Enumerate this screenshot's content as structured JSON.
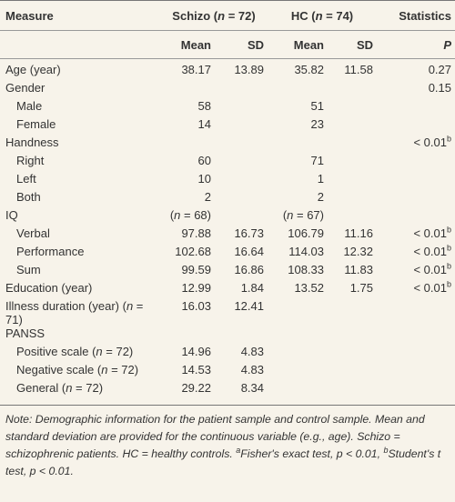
{
  "table": {
    "header": [
      [
        "Measure",
        [
          "Schizo (",
          {
            "italic": "n"
          },
          " = 72)"
        ],
        [
          "HC (",
          {
            "italic": "n"
          },
          " = 74)"
        ],
        "Statistics"
      ],
      [
        "Mean",
        "SD",
        "Mean",
        "SD",
        "P"
      ]
    ],
    "rows": [
      {
        "cells": [
          "Age (year)",
          38.17,
          13.89,
          35.82,
          11.58,
          0.27
        ]
      },
      {
        "cells": [
          "Gender",
          null,
          null,
          null,
          null,
          0.15
        ],
        "children": [
          {
            "cells": [
              "Male",
              58,
              null,
              51,
              null,
              null
            ]
          },
          {
            "cells": [
              "Female",
              14,
              null,
              23,
              null,
              null
            ]
          }
        ]
      },
      {
        "cells": [
          "Handness",
          null,
          null,
          null,
          null,
          [
            "< 0.01",
            {
              "sup": "b"
            }
          ]
        ],
        "children": [
          {
            "cells": [
              "Right",
              60,
              null,
              71,
              null,
              null
            ]
          },
          {
            "cells": [
              "Left",
              10,
              null,
              1,
              null,
              null
            ]
          },
          {
            "cells": [
              "Both",
              2,
              null,
              2,
              null,
              null
            ]
          }
        ]
      },
      {
        "cells": [
          "IQ",
          [
            "(",
            {
              "italic": "n"
            },
            " = 68)"
          ],
          null,
          [
            "(",
            {
              "italic": "n"
            },
            " = 67)"
          ],
          null,
          null
        ],
        "children": [
          {
            "cells": [
              "Verbal",
              97.88,
              16.73,
              106.79,
              11.16,
              [
                "< 0.01",
                {
                  "sup": "b"
                }
              ]
            ]
          },
          {
            "cells": [
              "Performance",
              102.68,
              16.64,
              114.03,
              12.32,
              [
                "< 0.01",
                {
                  "sup": "b"
                }
              ]
            ]
          },
          {
            "cells": [
              "Sum",
              99.59,
              16.86,
              108.33,
              11.83,
              [
                "< 0.01",
                {
                  "sup": "b"
                }
              ]
            ]
          }
        ]
      },
      {
        "cells": [
          "Education (year)",
          12.99,
          1.84,
          13.52,
          1.75,
          [
            "< 0.01",
            {
              "sup": "b"
            }
          ]
        ]
      },
      {
        "cells": [
          [
            "Illness duration (year) (",
            {
              "italic": "n"
            },
            " = 71)"
          ],
          16.03,
          12.41,
          null,
          null,
          null
        ]
      },
      {
        "cells": [
          "PANSS",
          null,
          null,
          null,
          null,
          null
        ],
        "children": [
          {
            "cells": [
              [
                "Positive scale (",
                {
                  "italic": "n"
                },
                " = 72)"
              ],
              14.96,
              4.83,
              null,
              null,
              null
            ]
          },
          {
            "cells": [
              [
                "Negative scale (",
                {
                  "italic": "n"
                },
                " = 72)"
              ],
              14.53,
              4.83,
              null,
              null,
              null
            ]
          },
          {
            "cells": [
              [
                "General (",
                {
                  "italic": "n"
                },
                " = 72)"
              ],
              29.22,
              8.34,
              null,
              null,
              null
            ]
          }
        ]
      }
    ],
    "note": [
      "Note: Demographic information for the patient sample and control sample. Mean and standard deviation are provided for the continuous variable (e.g., age). Schizo = schizophrenic patients. HC = healthy controls. ",
      {
        "sup": "a"
      },
      "Fisher's exact test, p < 0.01, ",
      {
        "sup": "b"
      },
      "Student's t test, p < 0.01."
    ]
  }
}
